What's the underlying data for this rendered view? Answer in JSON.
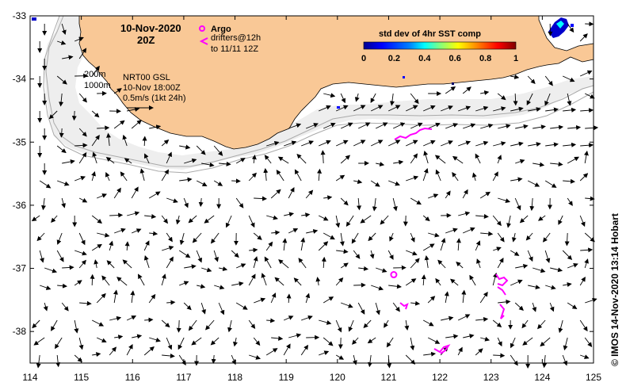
{
  "map": {
    "date": "10-Nov-2020",
    "time": "20Z",
    "product": "NRT00 GSL",
    "product_time": "10-Nov 18:00Z",
    "scale_label": "0.5m/s (1kt 24h)",
    "isobath_200": "200m",
    "isobath_1000": "1000m",
    "credit": "© IMOS 14-Nov-2020 13:14 Hobart",
    "land_color": "#f9c896",
    "shelf_color": "#eeeeee",
    "drifter_color": "#ff00ff"
  },
  "legend": {
    "argo_label": "Argo",
    "drifters_label": "drifters@12h",
    "drifters_label2": "to 11/11 12Z"
  },
  "colorbar": {
    "title": "std dev of 4hr SST comp",
    "ticks": [
      "0",
      "0.2",
      "0.4",
      "0.6",
      "0.8",
      "1"
    ],
    "colors": [
      "#00008f",
      "#0000ff",
      "#0080ff",
      "#00ffff",
      "#80ff80",
      "#ffff00",
      "#ff8000",
      "#ff0000",
      "#800000"
    ]
  },
  "axes": {
    "lon_ticks": [
      "114",
      "115",
      "116",
      "117",
      "118",
      "119",
      "120",
      "121",
      "122",
      "123",
      "124",
      "125"
    ],
    "lat_ticks": [
      "-33",
      "-34",
      "-35",
      "-36",
      "-37",
      "-38"
    ],
    "lon_range": [
      114,
      125
    ],
    "lat_range": [
      -38.5,
      -33
    ]
  },
  "argo_float": {
    "lon": 121.1,
    "lat": -37.1
  }
}
